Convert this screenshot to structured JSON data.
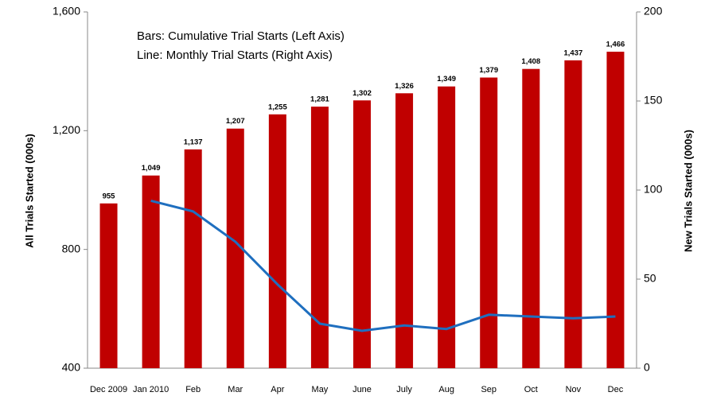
{
  "chart_data": {
    "type": "bar",
    "annotations": [
      "Bars: Cumulative Trial Starts (Left Axis)",
      "Line: Monthly Trial Starts (Right Axis)"
    ],
    "y_label": "All Trials Started (000s)",
    "y2_label": "New Trials Started (000s)",
    "categories": [
      "Dec 2009",
      "Jan 2010",
      "Feb",
      "Mar",
      "Apr",
      "May",
      "June",
      "July",
      "Aug",
      "Sep",
      "Oct",
      "Nov",
      "Dec"
    ],
    "series": [
      {
        "type": "bar",
        "color": "#c00000",
        "axis": "y",
        "values": [
          955,
          1049,
          1137,
          1207,
          1255,
          1281,
          1302,
          1326,
          1349,
          1379,
          1408,
          1437,
          1466
        ],
        "value_labels": [
          "955",
          "1,049",
          "1,137",
          "1,207",
          "1,255",
          "1,281",
          "1,302",
          "1,326",
          "1,349",
          "1,379",
          "1,408",
          "1,437",
          "1,466"
        ]
      },
      {
        "type": "line",
        "color": "#1f6fbf",
        "axis": "y2",
        "values": [
          null,
          94,
          88,
          71,
          47,
          25,
          21,
          24,
          22,
          30,
          29,
          28,
          29
        ]
      }
    ],
    "ylim": [
      400,
      1600
    ],
    "yticks": [
      400,
      800,
      {
        "value": 1200,
        "label": "1,200"
      },
      {
        "value": 1600,
        "label": "1,600"
      }
    ],
    "y2lim": [
      0,
      200
    ],
    "y2ticks": [
      0,
      50,
      100,
      150,
      200
    ],
    "grid": false
  }
}
